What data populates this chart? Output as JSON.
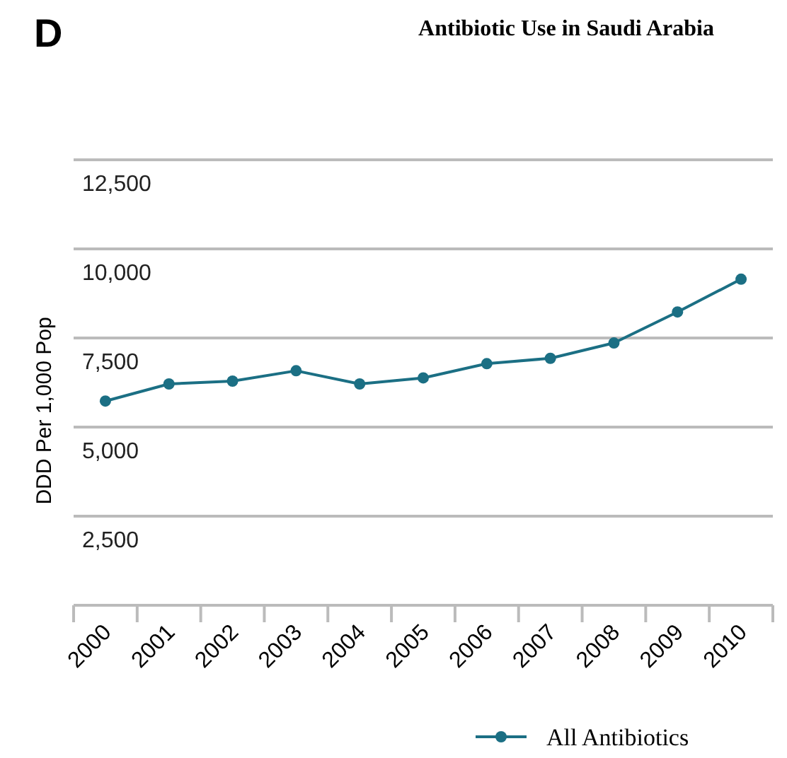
{
  "chart_data": {
    "type": "line",
    "title": "Antibiotic Use in Saudi Arabia",
    "ylabel": "DDD Per 1,000 Pop",
    "annotations": [
      "D"
    ],
    "categories": [
      "2000",
      "2001",
      "2002",
      "2003",
      "2004",
      "2005",
      "2006",
      "2007",
      "2008",
      "2009",
      "2010"
    ],
    "series": [
      {
        "name": "All Antibiotics",
        "color": "#1b6f84",
        "values": [
          5730,
          6210,
          6290,
          6580,
          6210,
          6380,
          6780,
          6930,
          7360,
          8230,
          9150
        ]
      }
    ],
    "ylim": [
      0,
      12500
    ],
    "yticks": [
      {
        "value": 0,
        "label": null
      },
      {
        "value": 2500,
        "label": "2,500"
      },
      {
        "value": 5000,
        "label": "5,000"
      },
      {
        "value": 7500,
        "label": "7,500"
      },
      {
        "value": 10000,
        "label": "10,000"
      },
      {
        "value": 12500,
        "label": "12,500"
      }
    ],
    "grid": "y",
    "legend": "bottom",
    "marker": "circle",
    "line_style": "solid"
  }
}
